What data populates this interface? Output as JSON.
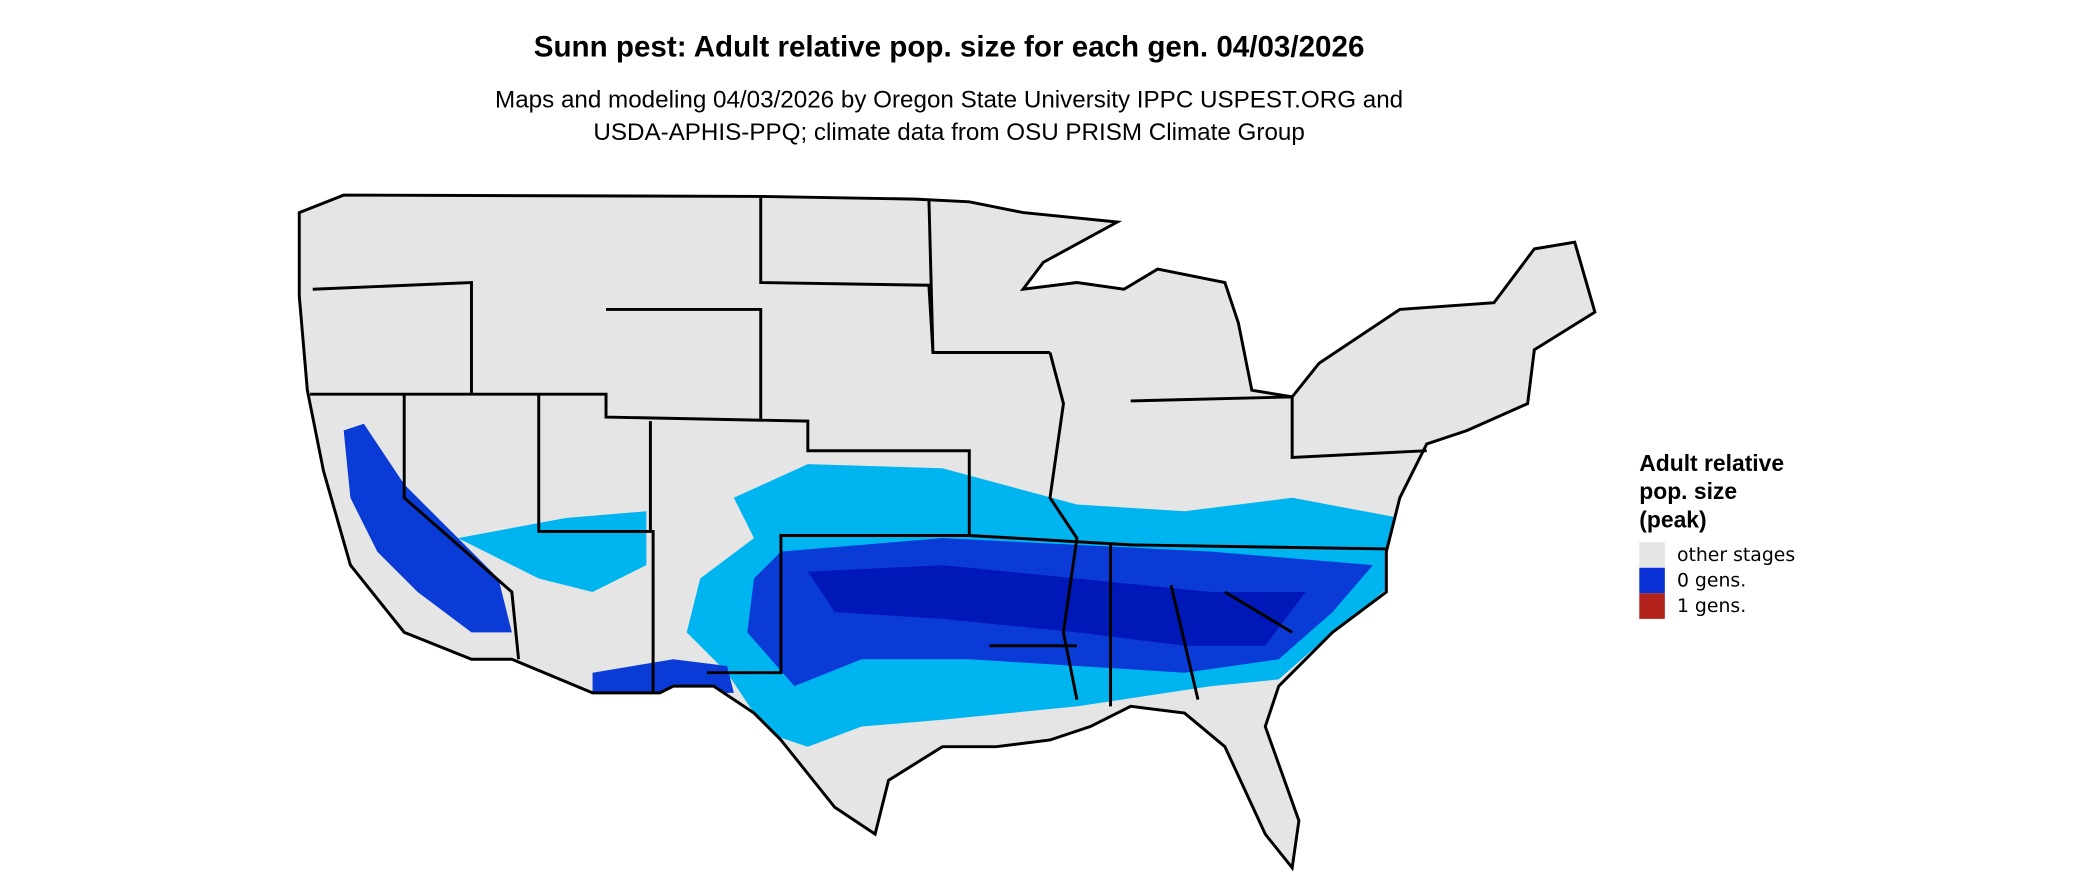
{
  "title": "Sunn pest: Adult relative pop. size for each gen. 04/03/2026",
  "subtitle": [
    "Maps and modeling 04/03/2026 by Oregon State University IPPC USPEST.ORG and",
    "USDA-APHIS-PPQ; climate data from OSU PRISM Climate Group"
  ],
  "legend": {
    "title": [
      "Adult relative",
      "pop. size",
      "(peak)"
    ],
    "items": [
      {
        "label": "other stages",
        "color": "#e5e5e5"
      },
      {
        "label": "0 gens.",
        "color": "#0a32d6"
      },
      {
        "label": "1 gens.",
        "color": "#b2221a"
      }
    ]
  }
}
